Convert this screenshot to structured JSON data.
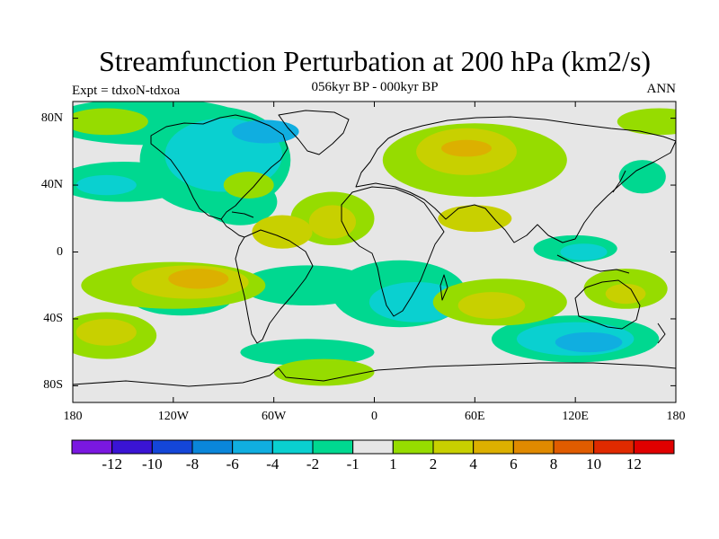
{
  "title": "Streamfunction Perturbation at 200 hPa (km2/s)",
  "subtitle": "056kyr BP - 000kyr BP",
  "experiment": "Expt = tdxoN-tdxoa",
  "season": "ANN",
  "map": {
    "projection": "cylindrical-equidistant",
    "lon_range": [
      -180,
      180
    ],
    "lat_range": [
      -90,
      90
    ],
    "lat_ticks": [
      "80N",
      "40N",
      "0",
      "40S",
      "80S"
    ],
    "lon_ticks": [
      "180",
      "120W",
      "60W",
      "0",
      "60E",
      "120E",
      "180"
    ]
  },
  "colorbar": {
    "labels": [
      "-12",
      "-10",
      "-8",
      "-6",
      "-4",
      "-2",
      "-1",
      "1",
      "2",
      "4",
      "6",
      "8",
      "10",
      "12"
    ],
    "colors": [
      "#7a18e0",
      "#3a14d4",
      "#1446d8",
      "#0a86da",
      "#10aee0",
      "#0ad0d0",
      "#00d890",
      "#e6e6e6",
      "#96dc00",
      "#c8d000",
      "#dcb000",
      "#e08a00",
      "#e05c00",
      "#e02a00",
      "#e00000"
    ]
  }
}
